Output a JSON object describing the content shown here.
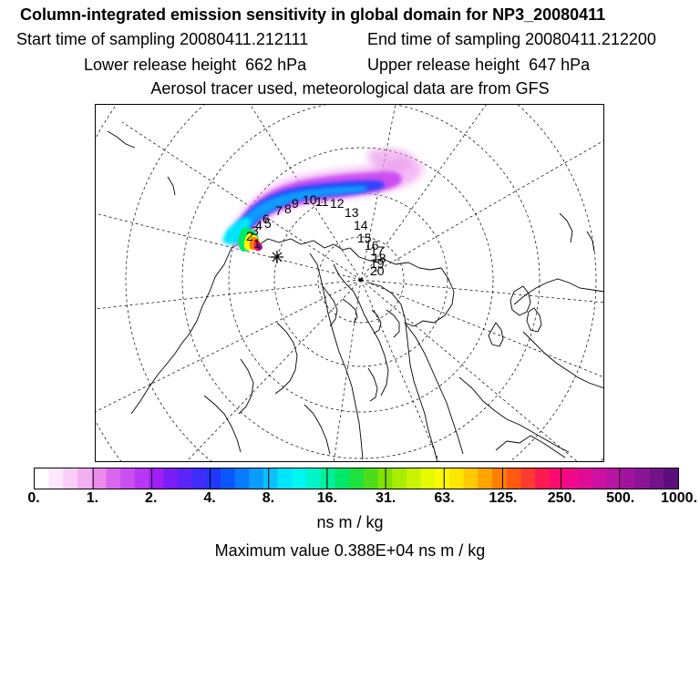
{
  "header": {
    "title": "Column-integrated emission sensitivity in global domain for NP3_20080411",
    "start_label": "Start time of sampling 20080411.212111",
    "end_label": "End time of sampling 20080411.212200",
    "lower_label": "Lower release height  662 hPa",
    "upper_label": "Upper release height  647 hPa",
    "tracer_label": "Aerosol tracer used, meteorological data are from GFS"
  },
  "map": {
    "projection": "north-polar-stereographic",
    "trajectory_labels": [
      "1",
      "2",
      "3",
      "4",
      "5",
      "6",
      "7",
      "8",
      "9",
      "10",
      "11",
      "12",
      "13",
      "14",
      "15",
      "16",
      "17",
      "18",
      "19",
      "20"
    ]
  },
  "colorbar": {
    "tick_labels": [
      "0.",
      "1.",
      "2.",
      "4.",
      "8.",
      "16.",
      "31.",
      "63.",
      "125.",
      "250.",
      "500.",
      "1000."
    ],
    "colors": [
      "#ffffff",
      "#fde8fd",
      "#f9cff9",
      "#f3aff3",
      "#ec8aec",
      "#d966ee",
      "#c94ff0",
      "#b737f2",
      "#9f1ff5",
      "#7a1ef7",
      "#5d24f9",
      "#3e2cfb",
      "#2038fd",
      "#0a57fd",
      "#0a7afd",
      "#0a9dfd",
      "#0ac0fd",
      "#00e6ff",
      "#00f6f0",
      "#00f4c8",
      "#00f09a",
      "#00e86a",
      "#1ee13e",
      "#4bdc1a",
      "#80e000",
      "#a8ec00",
      "#c8f400",
      "#e6fa00",
      "#fbfb00",
      "#ffe600",
      "#ffc800",
      "#ffa400",
      "#ff7e00",
      "#ff5a10",
      "#ff3a30",
      "#ff1a50",
      "#ff0a6e",
      "#f2088a",
      "#e00c98",
      "#cc10a2",
      "#b814a4",
      "#a0149e",
      "#8a1496",
      "#74128a",
      "#5c0e7c"
    ],
    "units": "ns m / kg",
    "max_label": "Maximum value  0.388E+04 ns m / kg"
  }
}
